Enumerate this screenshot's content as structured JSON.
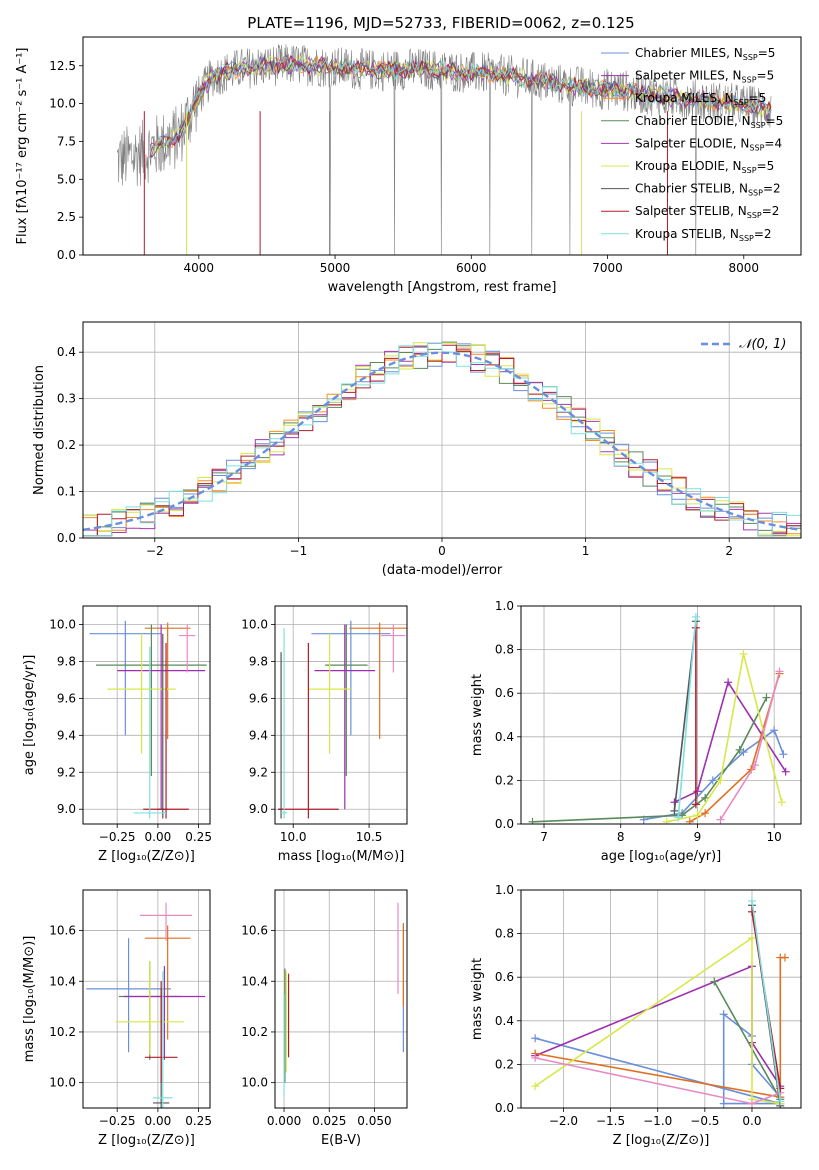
{
  "figure": {
    "title": "PLATE=1196, MJD=52733, FIBERID=0062, z=0.125"
  },
  "colors": {
    "s1": "#6a8fdc",
    "s2": "#9d2fb0",
    "s3": "#ff8c1a",
    "s4": "#5a8a5a",
    "s5": "#a23ab0",
    "s6": "#d7e84a",
    "s7": "#555555",
    "s8": "#b01e2a",
    "s9": "#7fe0e0",
    "gray": "#7f7f7f",
    "orange": "#e07020",
    "pink": "#e78ac3",
    "grid": "#b0b0b0"
  },
  "chart_data": [
    {
      "id": "spectrum",
      "type": "line",
      "xlabel": "wavelength [Angstrom, rest frame]",
      "ylabel": "Flux [fλ10⁻¹⁷ erg cm⁻² s⁻¹ A⁻¹]",
      "xlim": [
        3150,
        8420
      ],
      "ylim": [
        0,
        14.4
      ],
      "xticks": [
        "4000",
        "5000",
        "6000",
        "7000",
        "8000"
      ],
      "yticks": [
        "0.0",
        "2.5",
        "5.0",
        "7.5",
        "10.0",
        "12.5"
      ],
      "legend_position": "upper-right",
      "legend": [
        {
          "name": "Chabrier MILES, N_SSP=5",
          "color": "s1"
        },
        {
          "name": "Salpeter MILES, N_SSP=5",
          "color": "s2"
        },
        {
          "name": "Kroupa MILES, N_SSP=5",
          "color": "s3"
        },
        {
          "name": "Chabrier ELODIE, N_SSP=5",
          "color": "s4"
        },
        {
          "name": "Salpeter ELODIE, N_SSP=4",
          "color": "s5"
        },
        {
          "name": "Kroupa ELODIE, N_SSP=5",
          "color": "s6"
        },
        {
          "name": "Chabrier STELIB, N_SSP=2",
          "color": "s7"
        },
        {
          "name": "Salpeter STELIB, N_SSP=2",
          "color": "s8"
        },
        {
          "name": "Kroupa STELIB, N_SSP=2",
          "color": "s9"
        }
      ],
      "continuum": {
        "x": [
          3400,
          3600,
          3850,
          4000,
          4100,
          4300,
          4500,
          4700,
          5000,
          5300,
          5600,
          5900,
          6100,
          6300,
          6500,
          6700,
          6900,
          7100,
          7300,
          7500,
          7700,
          7900,
          8100,
          8200
        ],
        "y": [
          6.2,
          6.8,
          7.8,
          10.5,
          11.8,
          12.3,
          12.5,
          12.6,
          12.4,
          12.2,
          12.3,
          12.1,
          12.0,
          11.8,
          11.5,
          11.2,
          11.0,
          10.9,
          10.6,
          10.4,
          10.2,
          10.0,
          9.8,
          9.6
        ]
      },
      "models_x_start": 3640
    },
    {
      "id": "residuals",
      "type": "histogram",
      "xlabel": "(data-model)/error",
      "ylabel": "Normed distribution",
      "xlim": [
        -2.5,
        2.5
      ],
      "ylim": [
        0,
        0.465
      ],
      "xticks": [
        "−2",
        "−1",
        "0",
        "1",
        "2"
      ],
      "yticks": [
        "0.0",
        "0.1",
        "0.2",
        "0.3",
        "0.4"
      ],
      "legend_position": "upper-right",
      "legend": [
        {
          "name": "𝒩(0, 1)",
          "color": "s1"
        }
      ],
      "bin_width": 0.1,
      "normal_curve": {
        "mean": 0,
        "std": 1
      }
    },
    {
      "id": "age-vs-Z",
      "type": "scatter",
      "xlabel": "Z [log₁₀(Z/Z⊙)]",
      "ylabel": "age  [log₁₀(age/yr)]",
      "xlim": [
        -0.46,
        0.32
      ],
      "ylim": [
        8.92,
        10.1
      ],
      "xticks": [
        "−0.25",
        "0.00",
        "0.25"
      ],
      "yticks": [
        "9.0",
        "9.2",
        "9.4",
        "9.6",
        "9.8",
        "10.0"
      ],
      "points": [
        {
          "color": "s1",
          "x": -0.2,
          "y": 9.95,
          "xerr": 0.22,
          "yerr": [
            0.55,
            0.07
          ]
        },
        {
          "color": "orange",
          "x": 0.06,
          "y": 9.98,
          "xerr": 0.14,
          "yerr": [
            0.6,
            0.03
          ]
        },
        {
          "color": "s4",
          "x": -0.04,
          "y": 9.78,
          "xerr": 0.34,
          "yerr": [
            0.6,
            0.22
          ]
        },
        {
          "color": "s2",
          "x": 0.02,
          "y": 9.75,
          "xerr": 0.27,
          "yerr": [
            0.75,
            0.25
          ]
        },
        {
          "color": "s6",
          "x": -0.1,
          "y": 9.65,
          "xerr": 0.21,
          "yerr": [
            0.35,
            0.3
          ]
        },
        {
          "color": "pink",
          "x": 0.18,
          "y": 9.94,
          "xerr": 0.05,
          "yerr": [
            0.2,
            0.06
          ]
        },
        {
          "color": "s7",
          "x": 0.03,
          "y": 9.0,
          "xerr": 0.03,
          "yerr": [
            0.05,
            0.95
          ]
        },
        {
          "color": "s8",
          "x": 0.05,
          "y": 9.0,
          "xerr": 0.14,
          "yerr": [
            0.05,
            0.9
          ]
        },
        {
          "color": "s9",
          "x": -0.05,
          "y": 8.98,
          "xerr": 0.1,
          "yerr": [
            0.03,
            0.9
          ]
        }
      ]
    },
    {
      "id": "age-vs-mass",
      "type": "scatter",
      "xlabel": "mass [log₁₀(M/M⊙)]",
      "ylabel": "",
      "xlim": [
        9.88,
        10.75
      ],
      "ylim": [
        8.92,
        10.1
      ],
      "xticks": [
        "10.0",
        "10.5"
      ],
      "yticks": [
        "9.0",
        "9.2",
        "9.4",
        "9.6",
        "9.8",
        "10.0"
      ],
      "points": [
        {
          "color": "s1",
          "x": 10.38,
          "y": 9.95,
          "xerr": 0.26,
          "yerr": [
            0.55,
            0.07
          ]
        },
        {
          "color": "orange",
          "x": 10.57,
          "y": 9.98,
          "xerr": 0.2,
          "yerr": [
            0.6,
            0.03
          ]
        },
        {
          "color": "s4",
          "x": 10.35,
          "y": 9.78,
          "xerr": 0.14,
          "yerr": [
            0.6,
            0.22
          ]
        },
        {
          "color": "s2",
          "x": 10.34,
          "y": 9.75,
          "xerr": 0.2,
          "yerr": [
            0.75,
            0.25
          ]
        },
        {
          "color": "s6",
          "x": 10.24,
          "y": 9.65,
          "xerr": 0.14,
          "yerr": [
            0.35,
            0.3
          ]
        },
        {
          "color": "pink",
          "x": 10.66,
          "y": 9.94,
          "xerr": 0.08,
          "yerr": [
            0.2,
            0.06
          ]
        },
        {
          "color": "s7",
          "x": 9.92,
          "y": 9.0,
          "xerr": 0.02,
          "yerr": [
            0.05,
            0.85
          ]
        },
        {
          "color": "s8",
          "x": 10.1,
          "y": 9.0,
          "xerr": 0.2,
          "yerr": [
            0.05,
            0.9
          ]
        },
        {
          "color": "s9",
          "x": 9.94,
          "y": 8.98,
          "xerr": 0.02,
          "yerr": [
            0.03,
            1.0
          ]
        }
      ]
    },
    {
      "id": "weight-vs-age",
      "type": "line",
      "xlabel": "age  [log₁₀(age/yr)]",
      "ylabel": "mass weight",
      "xlim": [
        6.7,
        10.35
      ],
      "ylim": [
        0,
        1
      ],
      "xticks": [
        "7",
        "8",
        "9",
        "10"
      ],
      "yticks": [
        "0.0",
        "0.2",
        "0.4",
        "0.6",
        "0.8",
        "1.0"
      ],
      "series": [
        {
          "color": "s1",
          "x": [
            8.3,
            8.8,
            9.2,
            9.6,
            10.0,
            10.12
          ],
          "y": [
            0.02,
            0.05,
            0.2,
            0.33,
            0.43,
            0.32
          ]
        },
        {
          "color": "s2",
          "x": [
            8.7,
            9.0,
            9.4,
            10.15
          ],
          "y": [
            0.1,
            0.15,
            0.65,
            0.24
          ]
        },
        {
          "color": "orange",
          "x": [
            8.9,
            9.1,
            9.7,
            10.07
          ],
          "y": [
            0.01,
            0.05,
            0.25,
            0.69
          ]
        },
        {
          "color": "s4",
          "x": [
            6.85,
            8.8,
            9.1,
            9.55,
            9.9
          ],
          "y": [
            0.01,
            0.04,
            0.12,
            0.34,
            0.58
          ]
        },
        {
          "color": "s6",
          "x": [
            8.6,
            9.0,
            9.3,
            9.6,
            10.1
          ],
          "y": [
            0.01,
            0.04,
            0.2,
            0.78,
            0.1
          ]
        },
        {
          "color": "pink",
          "x": [
            9.3,
            9.75,
            10.07
          ],
          "y": [
            0.02,
            0.27,
            0.7
          ]
        },
        {
          "color": "s7",
          "x": [
            8.7,
            8.98
          ],
          "y": [
            0.06,
            0.93
          ]
        },
        {
          "color": "s8",
          "x": [
            8.98,
            8.98
          ],
          "y": [
            0.09,
            0.9
          ]
        },
        {
          "color": "s9",
          "x": [
            8.75,
            8.98
          ],
          "y": [
            0.03,
            0.95
          ]
        }
      ]
    },
    {
      "id": "mass-vs-Z",
      "type": "scatter",
      "xlabel": "Z [log₁₀(Z/Z⊙)]",
      "ylabel": "mass [log₁₀(M/M⊙)]",
      "xlim": [
        -0.46,
        0.32
      ],
      "ylim": [
        9.9,
        10.76
      ],
      "xticks": [
        "−0.25",
        "0.00",
        "0.25"
      ],
      "yticks": [
        "10.0",
        "10.2",
        "10.4",
        "10.6"
      ],
      "points": [
        {
          "color": "s1",
          "x": -0.18,
          "y": 10.37,
          "xerr": 0.26,
          "yerr": [
            0.25,
            0.2
          ]
        },
        {
          "color": "orange",
          "x": 0.06,
          "y": 10.57,
          "xerr": 0.14,
          "yerr": [
            0.4,
            0.05
          ]
        },
        {
          "color": "s4",
          "x": -0.05,
          "y": 10.34,
          "xerr": 0.19,
          "yerr": [
            0.25,
            0.14
          ]
        },
        {
          "color": "s2",
          "x": 0.04,
          "y": 10.34,
          "xerr": 0.25,
          "yerr": [
            0.25,
            0.12
          ]
        },
        {
          "color": "s6",
          "x": -0.05,
          "y": 10.24,
          "xerr": 0.21,
          "yerr": [
            0.13,
            0.24
          ]
        },
        {
          "color": "pink",
          "x": 0.05,
          "y": 10.66,
          "xerr": 0.16,
          "yerr": [
            0.1,
            0.05
          ]
        },
        {
          "color": "s7",
          "x": 0.02,
          "y": 9.92,
          "xerr": 0.05,
          "yerr": [
            0.02,
            0.45
          ]
        },
        {
          "color": "s8",
          "x": 0.02,
          "y": 10.1,
          "xerr": 0.1,
          "yerr": [
            0.1,
            0.3
          ]
        },
        {
          "color": "s9",
          "x": 0.03,
          "y": 9.94,
          "xerr": 0.06,
          "yerr": [
            0.05,
            0.5
          ]
        }
      ]
    },
    {
      "id": "mass-vs-EBV",
      "type": "scatter",
      "xlabel": "E(B-V)",
      "ylabel": "",
      "xlim": [
        -0.005,
        0.068
      ],
      "ylim": [
        9.9,
        10.76
      ],
      "xticks": [
        "0.000",
        "0.025",
        "0.050"
      ],
      "yticks": [
        "10.0",
        "10.2",
        "10.4",
        "10.6"
      ],
      "points": [
        {
          "color": "s1",
          "x": 0.066,
          "y": 10.37,
          "xerr": 0,
          "yerr": [
            0.25,
            0.25
          ]
        },
        {
          "color": "orange",
          "x": 0.066,
          "y": 10.45,
          "xerr": 0,
          "yerr": [
            0.15,
            0.18
          ]
        },
        {
          "color": "pink",
          "x": 0.063,
          "y": 10.55,
          "xerr": 0,
          "yerr": [
            0.2,
            0.16
          ]
        },
        {
          "color": "s4",
          "x": 0.0005,
          "y": 10.3,
          "xerr": 0,
          "yerr": [
            0.3,
            0.15
          ]
        },
        {
          "color": "s6",
          "x": 0.0012,
          "y": 10.24,
          "xerr": 0,
          "yerr": [
            0.2,
            0.2
          ]
        },
        {
          "color": "s8",
          "x": 0.0025,
          "y": 10.25,
          "xerr": 0,
          "yerr": [
            0.15,
            0.18
          ]
        },
        {
          "color": "s9",
          "x": 0.0,
          "y": 10.2,
          "xerr": 0,
          "yerr": [
            0.25,
            0.15
          ]
        }
      ]
    },
    {
      "id": "weight-vs-Z",
      "type": "line",
      "xlabel": "Z [log₁₀(Z/Z⊙)]",
      "ylabel": "mass weight",
      "xlim": [
        -2.45,
        0.52
      ],
      "ylim": [
        0,
        1
      ],
      "xticks": [
        "−2.0",
        "−1.5",
        "−1.0",
        "−0.5",
        "0.0"
      ],
      "yticks": [
        "0.0",
        "0.2",
        "0.4",
        "0.6",
        "0.8",
        "1.0"
      ],
      "series": [
        {
          "color": "s1",
          "x": [
            -2.3,
            0.3,
            -0.3,
            -0.3,
            0.0,
            0.0,
            0.3
          ],
          "y": [
            0.32,
            0.02,
            0.02,
            0.43,
            0.33,
            0.2,
            0.05
          ]
        },
        {
          "color": "s2",
          "x": [
            -2.3,
            0.0,
            0.0,
            0.3
          ],
          "y": [
            0.24,
            0.65,
            0.3,
            0.1
          ]
        },
        {
          "color": "orange",
          "x": [
            -2.3,
            0.3,
            0.3,
            0.35
          ],
          "y": [
            0.25,
            0.05,
            0.69,
            0.69
          ]
        },
        {
          "color": "s4",
          "x": [
            -0.4,
            0.3
          ],
          "y": [
            0.58,
            0.04
          ]
        },
        {
          "color": "s6",
          "x": [
            -2.3,
            0.0,
            0.0,
            0.3
          ],
          "y": [
            0.1,
            0.78,
            0.04,
            0.02
          ]
        },
        {
          "color": "pink",
          "x": [
            -2.3,
            0.0,
            0.3
          ],
          "y": [
            0.23,
            0.02,
            0.07
          ]
        },
        {
          "color": "s7",
          "x": [
            0.0,
            0.3
          ],
          "y": [
            0.93,
            0.01
          ]
        },
        {
          "color": "s8",
          "x": [
            0.0,
            0.3
          ],
          "y": [
            0.9,
            0.09
          ]
        },
        {
          "color": "s9",
          "x": [
            0.0,
            0.3
          ],
          "y": [
            0.95,
            0.03
          ]
        }
      ]
    }
  ]
}
